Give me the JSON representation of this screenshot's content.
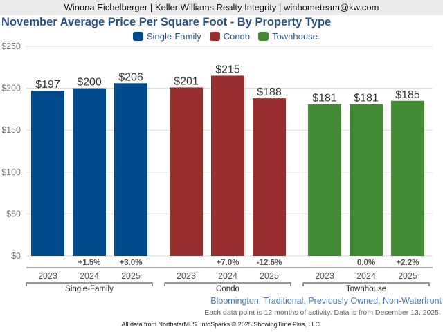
{
  "header": {
    "agent_line": "Winona Eichelberger | Keller Williams Realty Integrity | winhometeam@kw.com"
  },
  "chart_data": {
    "type": "bar",
    "title": "November Average Price Per Square Foot - By Property Type",
    "xlabel": "",
    "ylabel": "",
    "ylim": [
      0,
      250
    ],
    "yticks": [
      0,
      50,
      100,
      150,
      200,
      250
    ],
    "ytick_labels": [
      "$0",
      "$50",
      "$100",
      "$150",
      "$200",
      "$250"
    ],
    "grid": true,
    "legend_position": "top-center",
    "legend": [
      {
        "name": "Single-Family",
        "color": "#004b8d"
      },
      {
        "name": "Condo",
        "color": "#992e2e"
      },
      {
        "name": "Townhouse",
        "color": "#428a35"
      }
    ],
    "groups": [
      {
        "name": "Single-Family",
        "color": "#004b8d",
        "categories": [
          "2023",
          "2024",
          "2025"
        ],
        "values": [
          197,
          200,
          206
        ],
        "value_labels": [
          "$197",
          "$200",
          "$206"
        ],
        "pct_change": [
          "",
          "+1.5%",
          "+3.0%"
        ]
      },
      {
        "name": "Condo",
        "color": "#992e2e",
        "categories": [
          "2023",
          "2024",
          "2025"
        ],
        "values": [
          201,
          215,
          188
        ],
        "value_labels": [
          "$201",
          "$215",
          "$188"
        ],
        "pct_change": [
          "",
          "+7.0%",
          "-12.6%"
        ]
      },
      {
        "name": "Townhouse",
        "color": "#428a35",
        "categories": [
          "2023",
          "2024",
          "2025"
        ],
        "values": [
          181,
          181,
          185
        ],
        "value_labels": [
          "$181",
          "$181",
          "$185"
        ],
        "pct_change": [
          "",
          "0.0%",
          "+2.2%"
        ]
      }
    ]
  },
  "subtitle": "Bloomington: Traditional, Previously Owned, Non-Waterfront",
  "note": "Each data point is 12 months of activity. Data is from December 13, 2025.",
  "footer": "All data from NorthstarMLS. InfoSparks © 2025 ShowingTime Plus, LLC."
}
